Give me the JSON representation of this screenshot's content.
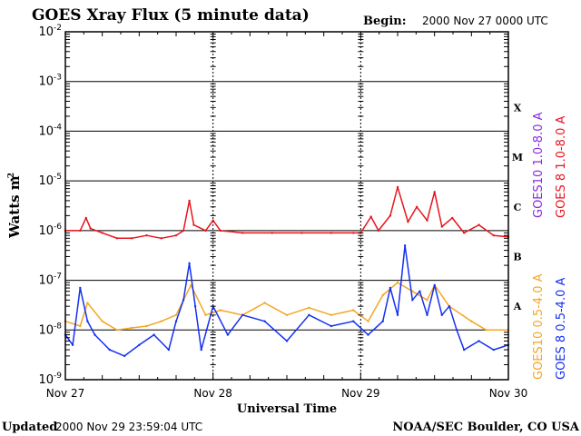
{
  "header": {
    "title": "GOES Xray Flux (5 minute data)",
    "begin_label": "Begin:",
    "begin_value": "2000 Nov 27 0000 UTC"
  },
  "footer": {
    "updated_label": "Updated",
    "updated_value": "2000 Nov 29 23:59:04 UTC",
    "credit": "NOAA/SEC Boulder, CO USA"
  },
  "colors": {
    "goes10_long": "#8a2be2",
    "goes8_long": "#e8141e",
    "goes10_short": "#f5a623",
    "goes8_short": "#1430f0",
    "grid": "#000000",
    "background": "#ffffff"
  },
  "chart_data": {
    "type": "line",
    "title": "GOES Xray Flux (5 minute data)",
    "xlabel": "Universal Time",
    "ylabel": "Watts m",
    "ylabel_superscript": "-2",
    "yscale": "log",
    "ylim": [
      1e-09,
      0.01
    ],
    "xlim": [
      "2000-11-27",
      "2000-11-30"
    ],
    "x_ticks": [
      "Nov 27",
      "Nov 28",
      "Nov 29",
      "Nov 30"
    ],
    "y_ticks": [
      {
        "base": "10",
        "exp": "-9",
        "value": 1e-09
      },
      {
        "base": "10",
        "exp": "-8",
        "value": 1e-08
      },
      {
        "base": "10",
        "exp": "-7",
        "value": 1e-07
      },
      {
        "base": "10",
        "exp": "-6",
        "value": 1e-06
      },
      {
        "base": "10",
        "exp": "-5",
        "value": 1e-05
      },
      {
        "base": "10",
        "exp": "-4",
        "value": 0.0001
      },
      {
        "base": "10",
        "exp": "-3",
        "value": 0.001
      },
      {
        "base": "10",
        "exp": "-2",
        "value": 0.01
      }
    ],
    "flare_classes": [
      {
        "label": "A",
        "value": 3e-08
      },
      {
        "label": "B",
        "value": 3e-07
      },
      {
        "label": "C",
        "value": 3e-06
      },
      {
        "label": "M",
        "value": 3e-05
      },
      {
        "label": "X",
        "value": 0.0003
      }
    ],
    "grid": true,
    "legend": [
      {
        "text": "GOES10 1.0-8.0 A",
        "color": "#8a2be2"
      },
      {
        "text": "GOES 8 1.0-8.0 A",
        "color": "#e8141e"
      },
      {
        "text": "GOES10 0.5-4.0 A",
        "color": "#f5a623"
      },
      {
        "text": "GOES 8 0.5-4.0 A",
        "color": "#1430f0"
      }
    ],
    "legend_placement": "right, rotated vertical",
    "series": [
      {
        "name": "GOES 8 1.0-8.0 A",
        "color": "#e8141e",
        "x_day": [
          0.0,
          0.1,
          0.14,
          0.17,
          0.25,
          0.35,
          0.45,
          0.55,
          0.65,
          0.75,
          0.8,
          0.84,
          0.87,
          0.95,
          1.0,
          1.05,
          1.2,
          1.4,
          1.6,
          1.8,
          1.95,
          2.0,
          2.07,
          2.12,
          2.2,
          2.25,
          2.32,
          2.38,
          2.45,
          2.5,
          2.55,
          2.62,
          2.7,
          2.8,
          2.9,
          3.0
        ],
        "y": [
          1e-06,
          1e-06,
          1.8e-06,
          1.1e-06,
          9e-07,
          7e-07,
          7e-07,
          8e-07,
          7e-07,
          8e-07,
          1e-06,
          4e-06,
          1.3e-06,
          1e-06,
          1.6e-06,
          1e-06,
          9e-07,
          9e-07,
          9e-07,
          9e-07,
          9e-07,
          9e-07,
          1.9e-06,
          1e-06,
          2e-06,
          7.5e-06,
          1.5e-06,
          3e-06,
          1.6e-06,
          6e-06,
          1.2e-06,
          1.8e-06,
          9e-07,
          1.3e-06,
          8e-07,
          7.5e-07
        ]
      },
      {
        "name": "GOES10 0.5-4.0 A",
        "color": "#f5a623",
        "x_day": [
          0.0,
          0.1,
          0.15,
          0.25,
          0.35,
          0.45,
          0.55,
          0.65,
          0.75,
          0.85,
          0.95,
          1.05,
          1.2,
          1.35,
          1.5,
          1.65,
          1.8,
          1.95,
          2.05,
          2.15,
          2.25,
          2.35,
          2.45,
          2.5,
          2.6,
          2.75,
          2.85,
          3.0
        ],
        "y": [
          1.5e-08,
          1.2e-08,
          3.5e-08,
          1.5e-08,
          1e-08,
          1.1e-08,
          1.2e-08,
          1.5e-08,
          2e-08,
          8e-08,
          2e-08,
          2.5e-08,
          2e-08,
          3.5e-08,
          2e-08,
          2.8e-08,
          2e-08,
          2.5e-08,
          1.5e-08,
          5e-08,
          9e-08,
          6e-08,
          4e-08,
          8e-08,
          3e-08,
          1.5e-08,
          1e-08,
          1e-08
        ]
      },
      {
        "name": "GOES 8 0.5-4.0 A",
        "color": "#1430f0",
        "x_day": [
          0.0,
          0.05,
          0.1,
          0.15,
          0.2,
          0.3,
          0.4,
          0.5,
          0.6,
          0.7,
          0.75,
          0.8,
          0.84,
          0.88,
          0.92,
          1.0,
          1.1,
          1.2,
          1.35,
          1.5,
          1.65,
          1.8,
          1.95,
          2.05,
          2.15,
          2.2,
          2.25,
          2.3,
          2.35,
          2.4,
          2.45,
          2.5,
          2.55,
          2.6,
          2.65,
          2.7,
          2.8,
          2.9,
          3.0
        ],
        "y": [
          8e-09,
          5e-09,
          7e-08,
          1.5e-08,
          8e-09,
          4e-09,
          3e-09,
          5e-09,
          8e-09,
          4e-09,
          1.5e-08,
          4e-08,
          2.2e-07,
          3e-08,
          4e-09,
          3e-08,
          8e-09,
          2e-08,
          1.5e-08,
          6e-09,
          2e-08,
          1.2e-08,
          1.5e-08,
          8e-09,
          1.5e-08,
          7e-08,
          2e-08,
          5e-07,
          4e-08,
          6e-08,
          2e-08,
          8e-08,
          2e-08,
          3e-08,
          1e-08,
          4e-09,
          6e-09,
          4e-09,
          5e-09
        ]
      }
    ]
  }
}
